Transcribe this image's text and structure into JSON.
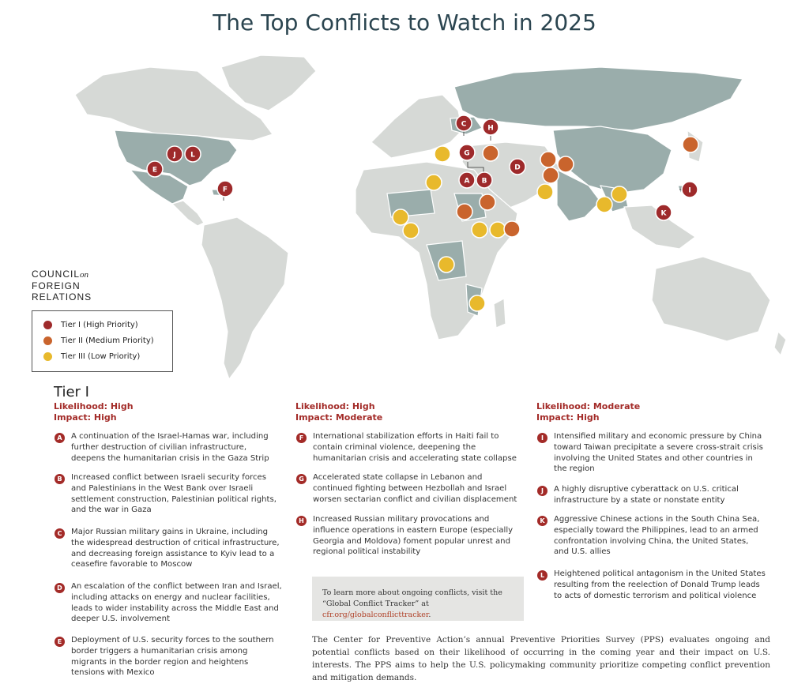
{
  "title": "The Top Conflicts to Watch in 2025",
  "colors": {
    "tier1": "#9e2a2b",
    "tier2": "#c9642d",
    "tier3": "#e8b92c",
    "accent_red": "#a32b28",
    "highlight_country": "#9aadab",
    "land": "#d6d9d6"
  },
  "logo": {
    "line1": "COUNCIL",
    "line1_suffix": "on",
    "line2": "FOREIGN",
    "line3": "RELATIONS"
  },
  "legend": [
    {
      "label": "Tier I (High Priority)",
      "color": "#9e2a2b"
    },
    {
      "label": "Tier II (Medium Priority)",
      "color": "#c9642d"
    },
    {
      "label": "Tier III (Low Priority)",
      "color": "#e8b92c"
    }
  ],
  "map_markers": [
    {
      "letter": "A",
      "tier": 1
    },
    {
      "letter": "B",
      "tier": 1
    },
    {
      "letter": "C",
      "tier": 1
    },
    {
      "letter": "D",
      "tier": 1
    },
    {
      "letter": "E",
      "tier": 1
    },
    {
      "letter": "F",
      "tier": 1
    },
    {
      "letter": "G",
      "tier": 1
    },
    {
      "letter": "H",
      "tier": 1
    },
    {
      "letter": "I",
      "tier": 1
    },
    {
      "letter": "J",
      "tier": 1
    },
    {
      "letter": "K",
      "tier": 1
    },
    {
      "letter": "L",
      "tier": 1
    }
  ],
  "tier_heading": "Tier I",
  "columns": [
    {
      "likelihood": "Likelihood: High",
      "impact": "Impact: High",
      "items": [
        {
          "letter": "A",
          "text": "A continuation of the Israel-Hamas war, including further destruction of civilian infrastructure, deepens the humanitarian crisis in the Gaza Strip"
        },
        {
          "letter": "B",
          "text": "Increased conflict between Israeli security forces and Palestinians in the West Bank over Israeli settlement construction, Palestinian political rights, and the war in Gaza"
        },
        {
          "letter": "C",
          "text": "Major Russian military gains in Ukraine, including the widespread destruction of critical infrastructure, and decreasing foreign assistance to Kyiv lead to a ceasefire favorable to Moscow"
        },
        {
          "letter": "D",
          "text": "An escalation of the conflict between Iran and Israel, including attacks on energy and nuclear facilities, leads to wider instability across the Middle East and deeper U.S. involvement"
        },
        {
          "letter": "E",
          "text": "Deployment of U.S. security forces to the southern border triggers a humanitarian crisis among migrants in the border region and heightens tensions with Mexico"
        }
      ]
    },
    {
      "likelihood": "Likelihood: High",
      "impact": "Impact: Moderate",
      "items": [
        {
          "letter": "F",
          "text": "International stabilization efforts in Haiti fail to contain criminal violence, deepening the humanitarian crisis and accelerating state collapse"
        },
        {
          "letter": "G",
          "text": "Accelerated state collapse in Lebanon and continued fighting between Hezbollah and Israel worsen sectarian conflict and civilian displacement"
        },
        {
          "letter": "H",
          "text": "Increased Russian military provocations and influence operations in eastern Europe (especially Georgia and Moldova) foment popular unrest and regional political instability"
        }
      ]
    },
    {
      "likelihood": "Likelihood: Moderate",
      "impact": "Impact: High",
      "items": [
        {
          "letter": "I",
          "text": "Intensified military and economic pressure by China toward Taiwan precipitate a severe cross-strait crisis involving the United States and other countries in the region"
        },
        {
          "letter": "J",
          "text": "A highly disruptive cyberattack on U.S. critical infrastructure by a state or nonstate entity"
        },
        {
          "letter": "K",
          "text": "Aggressive Chinese actions in the South China Sea, especially toward the Philippines, lead to an armed confrontation involving China, the United States, and U.S. allies"
        },
        {
          "letter": "L",
          "text": "Heightened political antagonism in the United States resulting from the reelection of Donald Trump leads to acts of domestic terrorism and political violence"
        }
      ]
    }
  ],
  "info_box": {
    "text": "To learn more about ongoing conflicts, visit the “Global Conflict Tracker” at",
    "link": "cfr.org/globalconflicttracker",
    "end": "."
  },
  "footer": "The Center for Preventive Action’s annual Preventive Priorities Survey (PPS) evaluates ongoing and potential conflicts based on their likelihood of occurring in the coming year and their impact on U.S. interests. The PPS aims to help the U.S. policymaking community prioritize competing conflict prevention and mitigation demands."
}
